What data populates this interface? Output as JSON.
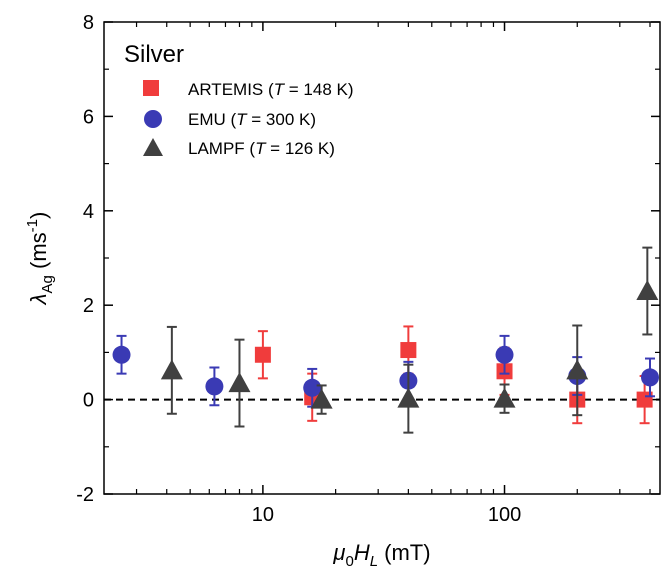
{
  "chart_data": {
    "type": "scatter",
    "title": "Silver",
    "xlabel": {
      "pre": "μ",
      "sub1": "0",
      "mid": "H",
      "sub2": "L",
      "post": " (mT)"
    },
    "ylabel": {
      "pre": "λ",
      "sub": "Ag",
      "mid": " (ms",
      "sup": "-1",
      "post": ")"
    },
    "x_scale": "log",
    "xlim": [
      2.2,
      440
    ],
    "ylim": [
      -2,
      8
    ],
    "x_ticks": [
      10,
      100
    ],
    "x_tick_labels": [
      "10",
      "100"
    ],
    "y_ticks": [
      -2,
      0,
      2,
      4,
      6,
      8
    ],
    "y_tick_labels": [
      "-2",
      "0",
      "2",
      "4",
      "6",
      "8"
    ],
    "reference_line": {
      "y": 0,
      "style": "dashed"
    },
    "series": [
      {
        "name": {
          "pre": "ARTEMIS (",
          "italic": "T",
          "post": " = 148 K)"
        },
        "marker": "square",
        "color": "#f03c3c",
        "points": [
          {
            "x": 10,
            "y": 0.95,
            "err": 0.5
          },
          {
            "x": 16,
            "y": 0.05,
            "err": 0.5
          },
          {
            "x": 40,
            "y": 1.05,
            "err": 0.5
          },
          {
            "x": 100,
            "y": 0.6,
            "err": 0.5
          },
          {
            "x": 200,
            "y": 0.0,
            "err": 0.5
          },
          {
            "x": 380,
            "y": 0.0,
            "err": 0.5
          }
        ]
      },
      {
        "name": {
          "pre": "EMU (",
          "italic": "T",
          "post": " = 300 K)"
        },
        "marker": "circle",
        "color": "#3a3ab4",
        "points": [
          {
            "x": 2.6,
            "y": 0.95,
            "err": 0.4
          },
          {
            "x": 6.3,
            "y": 0.28,
            "err": 0.4
          },
          {
            "x": 16,
            "y": 0.25,
            "err": 0.4
          },
          {
            "x": 40,
            "y": 0.4,
            "err": 0.4
          },
          {
            "x": 100,
            "y": 0.95,
            "err": 0.4
          },
          {
            "x": 200,
            "y": 0.5,
            "err": 0.4
          },
          {
            "x": 400,
            "y": 0.47,
            "err": 0.4
          }
        ]
      },
      {
        "name": {
          "pre": "LAMPF (",
          "italic": "T",
          "post": " = 126 K)"
        },
        "marker": "triangle",
        "color": "#404040",
        "points": [
          {
            "x": 4.2,
            "y": 0.62,
            "err": 0.92
          },
          {
            "x": 8,
            "y": 0.35,
            "err": 0.92
          },
          {
            "x": 17.5,
            "y": 0.0,
            "err": 0.3
          },
          {
            "x": 40,
            "y": 0.02,
            "err": 0.72
          },
          {
            "x": 100,
            "y": 0.02,
            "err": 0.3
          },
          {
            "x": 200,
            "y": 0.62,
            "err": 0.95
          },
          {
            "x": 390,
            "y": 2.3,
            "err": 0.92
          }
        ]
      }
    ]
  }
}
